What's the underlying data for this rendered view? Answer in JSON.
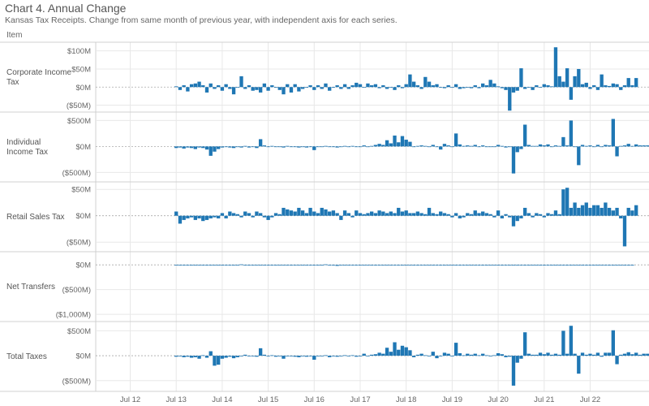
{
  "title": "Chart 4. Annual Change",
  "subtitle": "Kansas Tax Receipts. Change from same month of previous year, with independent axis for each series.",
  "item_header": "Item",
  "colors": {
    "bar": "#1f77b4",
    "grid": "#e8e8e8",
    "zero": "#aaaaaa",
    "divider": "#d0d0d0"
  },
  "chart_data": {
    "type": "bar",
    "x": {
      "start": "2013-07",
      "interval": "month",
      "ticks": [
        "Jul 12",
        "Jul 13",
        "Jul 14",
        "Jul 15",
        "Jul 16",
        "Jul 17",
        "Jul 18",
        "Jul 19",
        "Jul 20",
        "Jul 21",
        "Jul 22"
      ],
      "tick_dates": [
        "2012-07",
        "2013-07",
        "2014-07",
        "2015-07",
        "2016-07",
        "2017-07",
        "2018-07",
        "2019-07",
        "2020-07",
        "2021-07",
        "2022-07"
      ],
      "range": [
        "2011-10",
        "2023-04"
      ]
    },
    "panels": [
      {
        "label": "Corporate Income Tax",
        "unit": "$M",
        "ylim": [
          -60,
          115
        ],
        "ticks": [
          {
            "v": 100,
            "label": "$100M"
          },
          {
            "v": 50,
            "label": "$50M"
          },
          {
            "v": 0,
            "label": "$0M"
          },
          {
            "v": -50,
            "label": "($50M)"
          }
        ],
        "values": [
          2,
          -8,
          5,
          -12,
          8,
          10,
          15,
          5,
          -15,
          10,
          -5,
          5,
          -10,
          8,
          -5,
          -20,
          0,
          30,
          -5,
          5,
          -10,
          -8,
          -15,
          10,
          -10,
          5,
          0,
          -8,
          -20,
          8,
          -15,
          8,
          -12,
          -5,
          0,
          5,
          -8,
          5,
          -5,
          10,
          -10,
          0,
          5,
          -5,
          8,
          -5,
          5,
          12,
          8,
          0,
          10,
          5,
          8,
          -3,
          5,
          -5,
          0,
          -8,
          5,
          -3,
          8,
          35,
          15,
          5,
          -5,
          28,
          15,
          5,
          8,
          0,
          -3,
          5,
          0,
          8,
          -5,
          -3,
          0,
          -3,
          5,
          -3,
          10,
          5,
          20,
          10,
          2,
          -3,
          -8,
          -65,
          -15,
          -10,
          52,
          -5,
          0,
          -8,
          5,
          0,
          8,
          5,
          2,
          110,
          30,
          15,
          52,
          -35,
          30,
          50,
          8,
          12,
          -5,
          5,
          -8,
          35,
          5,
          3,
          10,
          8,
          -8,
          5,
          25,
          5,
          25
        ]
      },
      {
        "label": "Individual Income Tax",
        "unit": "$M",
        "ylim": [
          -620,
          600
        ],
        "ticks": [
          {
            "v": 500,
            "label": "$500M"
          },
          {
            "v": 0,
            "label": "$0M"
          },
          {
            "v": -500,
            "label": "($500M)"
          }
        ],
        "values": [
          -30,
          -20,
          -40,
          -20,
          -30,
          -50,
          -20,
          -30,
          -60,
          -180,
          -100,
          -50,
          -20,
          -10,
          -20,
          -30,
          -10,
          -20,
          10,
          -20,
          -10,
          -30,
          140,
          20,
          0,
          10,
          -10,
          -10,
          -20,
          10,
          0,
          -10,
          -20,
          0,
          -20,
          -10,
          -70,
          -10,
          0,
          10,
          -10,
          0,
          -20,
          0,
          10,
          0,
          10,
          -10,
          -10,
          20,
          -10,
          10,
          30,
          50,
          30,
          120,
          60,
          210,
          80,
          200,
          130,
          90,
          -10,
          10,
          20,
          10,
          0,
          30,
          -10,
          -60,
          50,
          20,
          0,
          250,
          40,
          10,
          20,
          10,
          30,
          0,
          20,
          0,
          -10,
          0,
          30,
          10,
          -20,
          -10,
          -520,
          -110,
          -50,
          420,
          30,
          10,
          10,
          40,
          20,
          40,
          0,
          20,
          10,
          180,
          20,
          500,
          -10,
          -360,
          30,
          10,
          20,
          0,
          30,
          -10,
          30,
          20,
          530,
          -190,
          10,
          20,
          50,
          10,
          40,
          20,
          20,
          20,
          10
        ]
      },
      {
        "label": "Retail Sales Tax",
        "unit": "$M",
        "ylim": [
          -62,
          58
        ],
        "ticks": [
          {
            "v": 50,
            "label": "$50M"
          },
          {
            "v": 0,
            "label": "$0M"
          },
          {
            "v": -50,
            "label": "($50M)"
          }
        ],
        "values": [
          8,
          -15,
          -8,
          -5,
          -3,
          -8,
          -5,
          -10,
          -8,
          -5,
          -3,
          -5,
          5,
          -5,
          8,
          5,
          3,
          -3,
          8,
          5,
          -3,
          8,
          5,
          -3,
          -8,
          -3,
          5,
          3,
          15,
          12,
          10,
          8,
          15,
          10,
          5,
          15,
          8,
          5,
          15,
          12,
          8,
          10,
          5,
          -8,
          10,
          5,
          -3,
          10,
          5,
          3,
          5,
          8,
          5,
          10,
          8,
          5,
          8,
          5,
          15,
          8,
          10,
          5,
          5,
          8,
          5,
          3,
          15,
          5,
          3,
          8,
          5,
          3,
          -3,
          5,
          -5,
          -3,
          5,
          3,
          10,
          5,
          8,
          5,
          3,
          -3,
          10,
          -5,
          3,
          -3,
          -20,
          -10,
          -5,
          15,
          5,
          -3,
          5,
          3,
          -3,
          5,
          3,
          10,
          3,
          50,
          53,
          15,
          25,
          15,
          20,
          25,
          15,
          20,
          20,
          15,
          25,
          15,
          10,
          15,
          -5,
          -58,
          15,
          10,
          20
        ]
      },
      {
        "label": "Net Transfers",
        "unit": "$M",
        "ylim": [
          -1080,
          200
        ],
        "ticks": [
          {
            "v": 0,
            "label": "$0M"
          },
          {
            "v": -500,
            "label": "($500M)"
          },
          {
            "v": -1000,
            "label": "($1,000M)"
          }
        ],
        "values": [
          -5,
          -3,
          -5,
          -3,
          -5,
          -3,
          -5,
          -3,
          -5,
          -3,
          -5,
          -3,
          -5,
          -3,
          -5,
          -3,
          -10,
          10,
          -10,
          -5,
          -3,
          -5,
          -3,
          -5,
          -3,
          -5,
          -3,
          -5,
          -3,
          -5,
          -3,
          -5,
          -3,
          -5,
          -3,
          -5,
          -3,
          -5,
          -10,
          10,
          -5,
          -3,
          -20,
          -5,
          -3,
          -10,
          -5,
          -3,
          -5,
          -3,
          -5,
          -3,
          -5,
          -3,
          -5,
          -3,
          -5,
          -3,
          -5,
          -3,
          -5,
          -3,
          -5,
          -3,
          -5,
          -3,
          -5,
          -3,
          -5,
          -3,
          -5,
          -3,
          -5,
          -3,
          -5,
          -3,
          -5,
          -3,
          -5,
          -3,
          -5,
          -3,
          -5,
          -3,
          -5,
          -3,
          -5,
          -3,
          -5,
          -3,
          -5,
          -3,
          -5,
          -3,
          -5,
          -3,
          -5,
          -3,
          -5,
          -3,
          -5,
          -3,
          -5,
          -3,
          -5,
          -3,
          -5,
          -3,
          -5,
          -3,
          -5,
          -3,
          -5,
          -3,
          -5,
          -3,
          -5,
          -3,
          -5,
          -3
        ]
      },
      {
        "label": "Total Taxes",
        "unit": "$M",
        "ylim": [
          -650,
          620
        ],
        "ticks": [
          {
            "v": 500,
            "label": "$500M"
          },
          {
            "v": 0,
            "label": "$0M"
          },
          {
            "v": -500,
            "label": "($500M)"
          }
        ],
        "values": [
          -20,
          -10,
          -30,
          -20,
          -40,
          -30,
          -60,
          10,
          -40,
          90,
          -200,
          -180,
          -60,
          -40,
          -20,
          -50,
          -30,
          -10,
          20,
          -10,
          -10,
          -20,
          150,
          20,
          0,
          10,
          -20,
          -10,
          -60,
          0,
          -10,
          -20,
          -30,
          0,
          -20,
          -10,
          -80,
          -10,
          0,
          10,
          -30,
          0,
          -20,
          0,
          10,
          0,
          10,
          -20,
          -10,
          40,
          -10,
          20,
          30,
          60,
          40,
          160,
          80,
          270,
          120,
          200,
          170,
          110,
          -30,
          20,
          40,
          10,
          0,
          80,
          -50,
          -10,
          60,
          40,
          0,
          260,
          50,
          10,
          40,
          20,
          40,
          10,
          40,
          10,
          -10,
          10,
          50,
          30,
          -30,
          -20,
          -600,
          -140,
          -60,
          470,
          40,
          20,
          20,
          60,
          30,
          60,
          20,
          40,
          20,
          500,
          40,
          600,
          40,
          -360,
          60,
          20,
          40,
          20,
          60,
          -20,
          60,
          60,
          510,
          -170,
          20,
          40,
          70,
          30,
          60,
          20,
          40,
          40,
          70
        ]
      }
    ]
  }
}
